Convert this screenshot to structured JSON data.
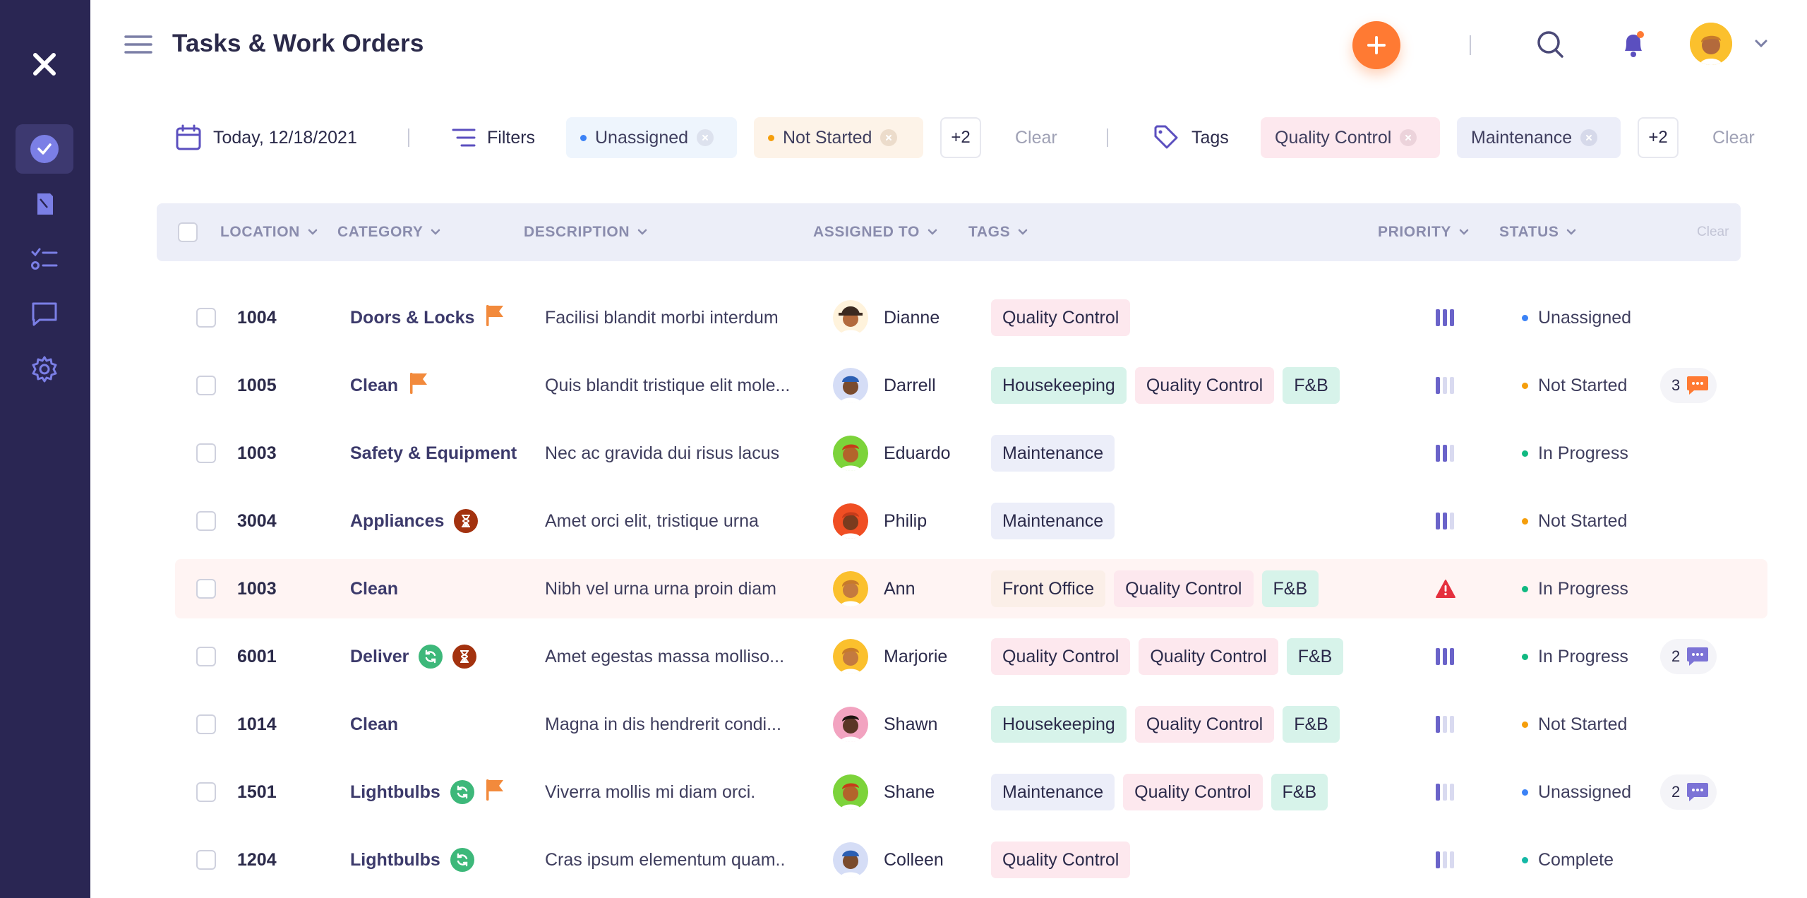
{
  "app": {
    "title": "Tasks & Work Orders"
  },
  "filters": {
    "date": "Today, 12/18/2021",
    "filters_label": "Filters",
    "status_chips": [
      {
        "label": "Unassigned",
        "dot_color": "#3b82f6",
        "bg": "#eef5fd"
      },
      {
        "label": "Not Started",
        "dot_color": "#f59e0b",
        "bg": "#fdf3e8"
      }
    ],
    "status_more": "+2",
    "status_clear": "Clear",
    "tags_label": "Tags",
    "tag_chips": [
      {
        "label": "Quality Control",
        "bg": "#fde8ee"
      },
      {
        "label": "Maintenance",
        "bg": "#eceef9"
      }
    ],
    "tags_more": "+2",
    "tags_clear": "Clear"
  },
  "table": {
    "headers": {
      "location": "LOCATION",
      "category": "CATEGORY",
      "description": "DESCRIPTION",
      "assigned_to": "ASSIGNED TO",
      "tags": "TAGS",
      "priority": "PRIORITY",
      "status": "STATUS",
      "clear": "Clear"
    },
    "tag_colors": {
      "Quality Control": "#fde8ee",
      "Housekeeping": "#d7f3ea",
      "F&B": "#d7f3ea",
      "Maintenance": "#eceef9",
      "Front Office": "#fbefe8"
    },
    "status_colors": {
      "Unassigned": "#3b82f6",
      "Not Started": "#f59e0b",
      "In Progress": "#10b981",
      "Complete": "#14b8a6"
    },
    "rows": [
      {
        "location": "1004",
        "category": "Doors & Locks",
        "icons": [
          "flag"
        ],
        "description": "Facilisi blandit morbi interdum",
        "assignee": "Dianne",
        "avatar": "hat",
        "tags": [
          "Quality Control"
        ],
        "priority": "high",
        "status": "Unassigned",
        "comments": null
      },
      {
        "location": "1005",
        "category": "Clean",
        "icons": [
          "flag"
        ],
        "description": "Quis blandit tristique elit mole...",
        "assignee": "Darrell",
        "avatar": "blue-cap",
        "tags": [
          "Housekeeping",
          "Quality Control",
          "F&B"
        ],
        "priority": "low",
        "status": "Not Started",
        "comments": {
          "count": "3",
          "color": "orange"
        }
      },
      {
        "location": "1003",
        "category": "Safety & Equipment",
        "icons": [],
        "description": "Nec ac gravida dui risus lacus",
        "assignee": "Eduardo",
        "avatar": "green",
        "tags": [
          "Maintenance"
        ],
        "priority": "medium",
        "status": "In Progress",
        "comments": null
      },
      {
        "location": "3004",
        "category": "Appliances",
        "icons": [
          "hourglass"
        ],
        "description": "Amet orci elit, tristique urna",
        "assignee": "Philip",
        "avatar": "red",
        "tags": [
          "Maintenance"
        ],
        "priority": "medium",
        "status": "Not Started",
        "comments": null
      },
      {
        "location": "1003",
        "category": "Clean",
        "icons": [],
        "description": "Nibh vel urna urna proin diam",
        "assignee": "Ann",
        "avatar": "yellow",
        "tags": [
          "Front Office",
          "Quality Control",
          "F&B"
        ],
        "priority": "urgent",
        "status": "In Progress",
        "comments": null,
        "highlight": true
      },
      {
        "location": "6001",
        "category": "Deliver",
        "icons": [
          "recurring",
          "hourglass"
        ],
        "description": "Amet egestas massa molliso...",
        "assignee": "Marjorie",
        "avatar": "yellow",
        "tags": [
          "Quality Control",
          "Quality Control",
          "F&B"
        ],
        "priority": "high",
        "status": "In Progress",
        "comments": {
          "count": "2",
          "color": "purple"
        }
      },
      {
        "location": "1014",
        "category": "Clean",
        "icons": [],
        "description": "Magna in dis hendrerit condi...",
        "assignee": "Shawn",
        "avatar": "pink",
        "tags": [
          "Housekeeping",
          "Quality Control",
          "F&B"
        ],
        "priority": "low",
        "status": "Not Started",
        "comments": null
      },
      {
        "location": "1501",
        "category": "Lightbulbs",
        "icons": [
          "recurring",
          "flag"
        ],
        "description": "Viverra mollis mi diam orci.",
        "assignee": "Shane",
        "avatar": "green",
        "tags": [
          "Maintenance",
          "Quality Control",
          "F&B"
        ],
        "priority": "low",
        "status": "Unassigned",
        "comments": {
          "count": "2",
          "color": "purple"
        }
      },
      {
        "location": "1204",
        "category": "Lightbulbs",
        "icons": [
          "recurring"
        ],
        "description": "Cras ipsum elementum quam..",
        "assignee": "Colleen",
        "avatar": "blue-cap",
        "tags": [
          "Quality Control"
        ],
        "priority": "low",
        "status": "Complete",
        "comments": null
      }
    ]
  },
  "icons": {
    "sidebar": [
      "close-icon",
      "tasks-check-icon",
      "document-icon",
      "checklist-icon",
      "chat-icon",
      "gear-icon"
    ],
    "header": [
      "menu-icon",
      "plus-icon",
      "search-icon",
      "bell-icon",
      "user-avatar",
      "chevron-down-icon"
    ]
  }
}
